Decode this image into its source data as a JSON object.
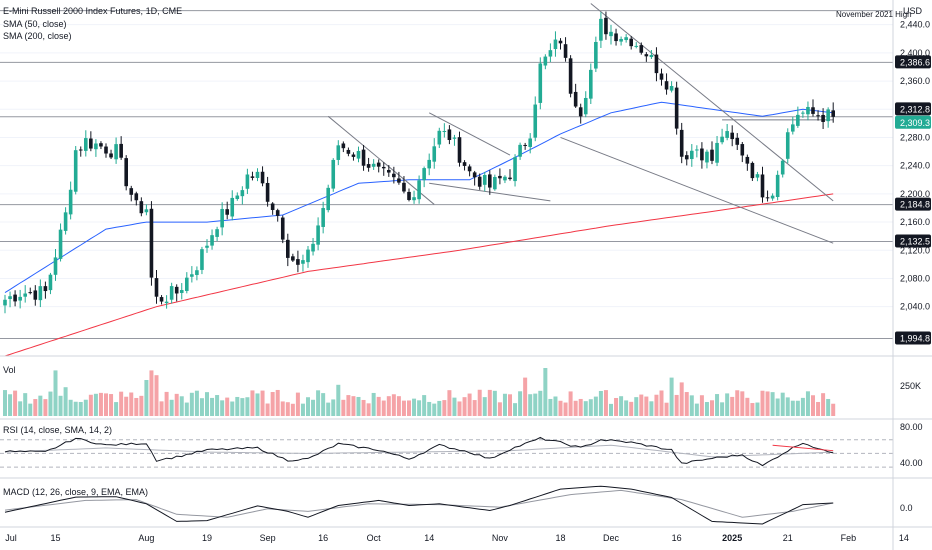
{
  "header": {
    "title": "E-Mini Russell 2000 Index Futures, 1D, CME",
    "sma50_label": "SMA (50, close)",
    "sma200_label": "SMA (200, close)"
  },
  "price_axis": {
    "currency": "USD",
    "ticks": [
      "2,440.0",
      "2,400.0",
      "2,360.0",
      "2,320.0",
      "2,280.0",
      "2,240.0",
      "2,200.0",
      "2,160.0",
      "2,120.0",
      "2,080.0",
      "2,040.0"
    ],
    "levels": [
      {
        "label": "2,386.6",
        "value": 2386.6,
        "style": "dark"
      },
      {
        "label": "2,312.8",
        "value": 2312.8,
        "style": "dark"
      },
      {
        "label": "2,309.3",
        "value": 2309.3,
        "style": "green"
      },
      {
        "label": "2,184.8",
        "value": 2184.8,
        "style": "dark"
      },
      {
        "label": "2,132.5",
        "value": 2132.5,
        "style": "dark"
      },
      {
        "label": "1,994.8",
        "value": 1994.8,
        "style": "dark"
      }
    ]
  },
  "annotations": {
    "november_high": "November 2021 High"
  },
  "volume_pane": {
    "label": "Vol",
    "axis_tick": "250K"
  },
  "rsi_pane": {
    "label": "RSI (14, close, SMA, 14, 2)",
    "ticks": [
      "80.00",
      "40.00"
    ]
  },
  "macd_pane": {
    "label": "MACD (12, 26, close, 9, EMA, EMA)",
    "ticks": [
      "0.0"
    ]
  },
  "time_axis": {
    "labels": [
      "Jul",
      "15",
      "Aug",
      "19",
      "Sep",
      "16",
      "Oct",
      "14",
      "Nov",
      "18",
      "Dec",
      "16",
      "2025",
      "21",
      "Feb",
      "14"
    ]
  },
  "colors": {
    "up": "#22ab94",
    "down": "#131722",
    "sma50": "#2962ff",
    "sma200": "#f23645",
    "vol_up": "#8fd3c5",
    "vol_down": "#f5a3a7",
    "grid": "#f0f3fa",
    "level": "#9598a1",
    "trend": "#787b86"
  },
  "chart_data": {
    "type": "candlestick",
    "symbol": "E-Mini Russell 2000 Index Futures",
    "timeframe": "1D",
    "y_range": [
      1995,
      2460
    ],
    "horizontal_levels": [
      2460,
      2386.6,
      2309.3,
      2184.8,
      2132.5,
      1994.8
    ],
    "close_anchors": [
      [
        0,
        2050
      ],
      [
        3,
        2060
      ],
      [
        8,
        2060
      ],
      [
        12,
        2170
      ],
      [
        14,
        2262
      ],
      [
        16,
        2275
      ],
      [
        22,
        2260
      ],
      [
        26,
        2180
      ],
      [
        28,
        2180
      ],
      [
        29,
        2080
      ],
      [
        30,
        2050
      ],
      [
        34,
        2060
      ],
      [
        38,
        2100
      ],
      [
        42,
        2160
      ],
      [
        45,
        2185
      ],
      [
        48,
        2225
      ],
      [
        50,
        2225
      ],
      [
        54,
        2170
      ],
      [
        56,
        2120
      ],
      [
        58,
        2095
      ],
      [
        60,
        2110
      ],
      [
        63,
        2180
      ],
      [
        66,
        2270
      ],
      [
        70,
        2255
      ],
      [
        74,
        2230
      ],
      [
        78,
        2210
      ],
      [
        80,
        2190
      ],
      [
        83,
        2240
      ],
      [
        86,
        2285
      ],
      [
        88,
        2282
      ],
      [
        92,
        2230
      ],
      [
        96,
        2210
      ],
      [
        100,
        2230
      ],
      [
        104,
        2290
      ],
      [
        106,
        2380
      ],
      [
        108,
        2400
      ],
      [
        110,
        2420
      ],
      [
        112,
        2350
      ],
      [
        114,
        2320
      ],
      [
        116,
        2375
      ],
      [
        118,
        2440
      ],
      [
        120,
        2430
      ],
      [
        124,
        2420
      ],
      [
        127,
        2400
      ],
      [
        132,
        2350
      ],
      [
        134,
        2255
      ],
      [
        137,
        2265
      ],
      [
        140,
        2248
      ],
      [
        142,
        2285
      ],
      [
        146,
        2260
      ],
      [
        150,
        2205
      ],
      [
        152,
        2205
      ],
      [
        155,
        2285
      ],
      [
        157,
        2315
      ],
      [
        161,
        2312
      ],
      [
        164,
        2309.3
      ]
    ],
    "sma50_anchors": [
      [
        0,
        2060
      ],
      [
        20,
        2150
      ],
      [
        28,
        2160
      ],
      [
        40,
        2160
      ],
      [
        55,
        2170
      ],
      [
        70,
        2215
      ],
      [
        80,
        2220
      ],
      [
        92,
        2220
      ],
      [
        100,
        2248
      ],
      [
        110,
        2285
      ],
      [
        120,
        2315
      ],
      [
        130,
        2330
      ],
      [
        140,
        2320
      ],
      [
        150,
        2310
      ],
      [
        158,
        2320
      ],
      [
        164,
        2315
      ]
    ],
    "sma200_anchors": [
      [
        0,
        1970
      ],
      [
        30,
        2040
      ],
      [
        60,
        2090
      ],
      [
        90,
        2120
      ],
      [
        120,
        2155
      ],
      [
        140,
        2175
      ],
      [
        164,
        2200
      ]
    ],
    "trendlines": [
      {
        "from": [
          116,
          2470
        ],
        "to": [
          164,
          2190
        ]
      },
      {
        "from": [
          110,
          2280
        ],
        "to": [
          164,
          2130
        ]
      },
      {
        "from": [
          64,
          2310
        ],
        "to": [
          85,
          2185
        ]
      },
      {
        "from": [
          84,
          2315
        ],
        "to": [
          100,
          2255
        ]
      },
      {
        "from": [
          84,
          2215
        ],
        "to": [
          108,
          2190
        ]
      },
      {
        "from": [
          142,
          2305
        ],
        "to": [
          164,
          2305
        ]
      }
    ],
    "volume_peaks": [
      [
        10,
        0.95
      ],
      [
        12,
        0.6
      ],
      [
        28,
        0.75
      ],
      [
        29,
        0.95
      ],
      [
        30,
        0.85
      ],
      [
        66,
        0.65
      ],
      [
        103,
        0.8
      ],
      [
        107,
        1.0
      ],
      [
        132,
        0.8
      ],
      [
        134,
        0.7
      ]
    ],
    "rsi_anchors": [
      [
        0,
        53
      ],
      [
        8,
        52
      ],
      [
        14,
        72
      ],
      [
        20,
        62
      ],
      [
        28,
        65
      ],
      [
        30,
        40
      ],
      [
        34,
        45
      ],
      [
        40,
        55
      ],
      [
        50,
        58
      ],
      [
        56,
        40
      ],
      [
        60,
        42
      ],
      [
        66,
        64
      ],
      [
        74,
        55
      ],
      [
        80,
        42
      ],
      [
        86,
        62
      ],
      [
        92,
        52
      ],
      [
        96,
        42
      ],
      [
        100,
        56
      ],
      [
        106,
        72
      ],
      [
        110,
        66
      ],
      [
        114,
        58
      ],
      [
        118,
        70
      ],
      [
        124,
        66
      ],
      [
        132,
        55
      ],
      [
        134,
        35
      ],
      [
        140,
        43
      ],
      [
        146,
        48
      ],
      [
        150,
        32
      ],
      [
        154,
        50
      ],
      [
        158,
        66
      ],
      [
        162,
        54
      ],
      [
        164,
        52
      ]
    ],
    "rsi_sma_anchors": [
      [
        0,
        52
      ],
      [
        20,
        58
      ],
      [
        40,
        52
      ],
      [
        60,
        50
      ],
      [
        80,
        52
      ],
      [
        100,
        54
      ],
      [
        120,
        62
      ],
      [
        140,
        45
      ],
      [
        164,
        52
      ]
    ],
    "macd_anchors": [
      [
        0,
        -10
      ],
      [
        14,
        26
      ],
      [
        22,
        27
      ],
      [
        28,
        10
      ],
      [
        34,
        -32
      ],
      [
        40,
        -30
      ],
      [
        50,
        5
      ],
      [
        56,
        -8
      ],
      [
        60,
        -22
      ],
      [
        66,
        6
      ],
      [
        74,
        18
      ],
      [
        80,
        6
      ],
      [
        86,
        10
      ],
      [
        96,
        -6
      ],
      [
        100,
        6
      ],
      [
        110,
        45
      ],
      [
        118,
        52
      ],
      [
        124,
        45
      ],
      [
        132,
        25
      ],
      [
        140,
        -32
      ],
      [
        150,
        -38
      ],
      [
        158,
        8
      ],
      [
        164,
        12
      ]
    ],
    "signal_anchors": [
      [
        0,
        -5
      ],
      [
        16,
        18
      ],
      [
        26,
        20
      ],
      [
        34,
        -15
      ],
      [
        44,
        -22
      ],
      [
        52,
        -2
      ],
      [
        60,
        -8
      ],
      [
        72,
        10
      ],
      [
        86,
        8
      ],
      [
        98,
        2
      ],
      [
        112,
        32
      ],
      [
        122,
        42
      ],
      [
        134,
        20
      ],
      [
        146,
        -22
      ],
      [
        156,
        -8
      ],
      [
        164,
        12
      ]
    ]
  }
}
